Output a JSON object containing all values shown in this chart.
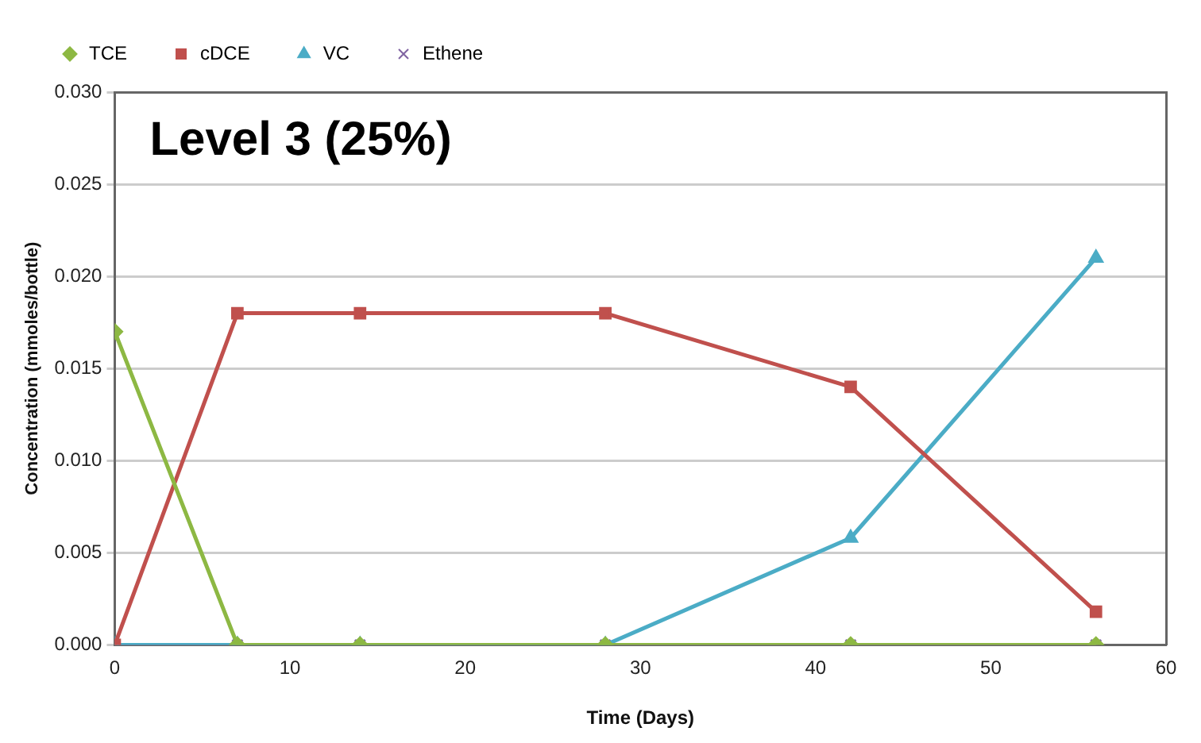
{
  "chart_data": {
    "type": "line",
    "title": "Level 3 (25%)",
    "xlabel": "Time (Days)",
    "ylabel": "Concentration (mmoles/bottle)",
    "x": [
      0,
      7,
      14,
      28,
      42,
      56
    ],
    "series": [
      {
        "name": "TCE",
        "color": "#8db843",
        "marker": "diamond",
        "values": [
          0.017,
          0,
          0,
          0,
          0,
          0
        ]
      },
      {
        "name": "cDCE",
        "color": "#c0504d",
        "marker": "square",
        "values": [
          0,
          0.018,
          0.018,
          0.018,
          0.014,
          0.0018
        ]
      },
      {
        "name": "VC",
        "color": "#4bacc6",
        "marker": "triangle",
        "values": [
          0,
          0,
          0,
          0,
          0.0058,
          0.021
        ]
      },
      {
        "name": "Ethene",
        "color": "#8064a2",
        "marker": "cross",
        "values": [
          0,
          0,
          0,
          0,
          0,
          0
        ]
      }
    ],
    "xlim": [
      0,
      60
    ],
    "xticks": [
      0,
      10,
      20,
      30,
      40,
      50,
      60
    ],
    "ylim": [
      0,
      0.03
    ],
    "yticks": [
      {
        "value": 0,
        "label": "0.000"
      },
      {
        "value": 0.005,
        "label": "0.005"
      },
      {
        "value": 0.01,
        "label": "0.010"
      },
      {
        "value": 0.015,
        "label": "0.015"
      },
      {
        "value": 0.02,
        "label": "0.020"
      },
      {
        "value": 0.025,
        "label": "0.025"
      },
      {
        "value": 0.03,
        "label": "0.030"
      }
    ],
    "grid": "y",
    "legend": "top left",
    "line_style": "solid"
  }
}
